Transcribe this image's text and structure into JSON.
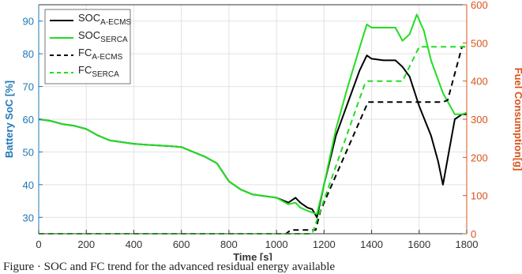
{
  "chart_data": {
    "type": "line",
    "xlabel": "Time [s]",
    "ylabel_left": "Battery SoC [%]",
    "ylabel_right": "Fuel Consumption[g]",
    "xlim": [
      0,
      1800
    ],
    "ylim_left": [
      25,
      95
    ],
    "ylim_right": [
      0,
      600
    ],
    "xticks": [
      0,
      200,
      400,
      600,
      800,
      1000,
      1200,
      1400,
      1600,
      1800
    ],
    "yticks_left": [
      30,
      40,
      50,
      60,
      70,
      80,
      90
    ],
    "yticks_right": [
      0,
      100,
      200,
      300,
      400,
      500,
      600
    ],
    "grid": true,
    "legend_position": "top-left",
    "colors": {
      "left_axis": "#1f77b4",
      "right_axis": "#d95319",
      "ecms": "#000000",
      "serca": "#22dd22"
    },
    "series": [
      {
        "name": "SOC",
        "name_sub": "A-ECMS",
        "axis": "left",
        "style": "solid",
        "color": "#000000",
        "x": [
          0,
          50,
          100,
          150,
          200,
          250,
          300,
          350,
          400,
          450,
          500,
          550,
          600,
          650,
          700,
          750,
          800,
          850,
          900,
          950,
          1000,
          1050,
          1080,
          1100,
          1130,
          1150,
          1170,
          1200,
          1250,
          1300,
          1350,
          1380,
          1400,
          1450,
          1500,
          1530,
          1560,
          1600,
          1650,
          1680,
          1700,
          1720,
          1750,
          1780,
          1800
        ],
        "y": [
          60,
          59.5,
          58.5,
          58,
          57,
          55,
          53.5,
          53,
          52.5,
          52.2,
          52,
          51.8,
          51.5,
          50,
          48.5,
          46.5,
          41,
          38.5,
          37,
          36.5,
          36,
          34.5,
          36,
          34.5,
          33,
          32.5,
          30,
          40,
          55,
          65,
          75,
          79.5,
          78.5,
          78,
          78,
          76,
          73,
          64,
          55,
          47,
          40,
          48,
          60,
          61.5,
          61.5
        ]
      },
      {
        "name": "SOC",
        "name_sub": "SERCA",
        "axis": "left",
        "style": "solid",
        "color": "#22dd22",
        "x": [
          0,
          50,
          100,
          150,
          200,
          250,
          300,
          350,
          400,
          450,
          500,
          550,
          600,
          650,
          700,
          750,
          800,
          850,
          900,
          950,
          1000,
          1050,
          1080,
          1100,
          1130,
          1150,
          1170,
          1200,
          1250,
          1300,
          1350,
          1380,
          1400,
          1450,
          1500,
          1530,
          1560,
          1590,
          1620,
          1650,
          1700,
          1750,
          1780,
          1800
        ],
        "y": [
          60,
          59.5,
          58.5,
          58,
          57,
          55,
          53.5,
          53,
          52.5,
          52.2,
          52,
          51.8,
          51.5,
          50,
          48.5,
          46.5,
          41,
          38.5,
          37,
          36.5,
          36,
          34,
          34.5,
          33,
          32,
          31.5,
          31,
          40,
          57,
          70,
          82,
          89,
          88,
          88,
          88,
          84,
          86,
          92,
          87,
          78,
          68,
          61.5,
          61.5,
          62
        ]
      },
      {
        "name": "FC",
        "name_sub": "A-ECMS",
        "axis": "right",
        "style": "dashed",
        "color": "#000000",
        "x": [
          0,
          1040,
          1060,
          1165,
          1185,
          1385,
          1400,
          1700,
          1720,
          1780,
          1800
        ],
        "y": [
          0,
          0,
          10,
          10,
          60,
          345,
          345,
          345,
          350,
          490,
          490
        ]
      },
      {
        "name": "FC",
        "name_sub": "SERCA",
        "axis": "right",
        "style": "dashed",
        "color": "#22dd22",
        "x": [
          0,
          1150,
          1370,
          1385,
          1530,
          1600,
          1800
        ],
        "y": [
          0,
          0,
          390,
          400,
          400,
          490,
          490
        ]
      }
    ]
  },
  "caption": "Figure · SOC and FC trend for the advanced residual energy available"
}
